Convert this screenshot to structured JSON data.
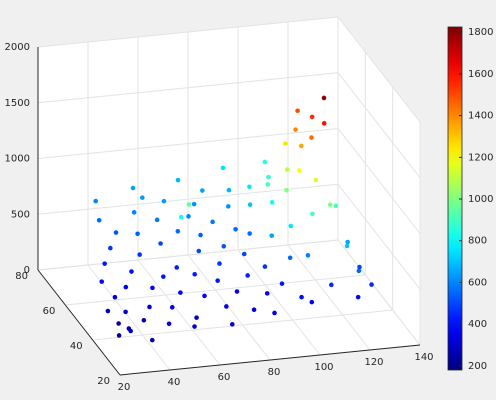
{
  "chart_data": {
    "type": "scatter3d",
    "colormap": "jet",
    "grid": true,
    "xlim": [
      20,
      140
    ],
    "xticks": [
      20,
      40,
      60,
      80,
      100,
      120,
      140
    ],
    "ylim": [
      20,
      80
    ],
    "yticks": [
      20,
      40,
      60,
      80
    ],
    "zlim": [
      0,
      2000
    ],
    "zticks": [
      0,
      500,
      1000,
      1500,
      2000
    ],
    "clim": [
      180,
      1825
    ],
    "cticks": [
      200,
      400,
      600,
      800,
      1000,
      1200,
      1400,
      1600,
      1800
    ],
    "x": [
      24,
      26,
      27,
      25,
      29,
      30,
      28,
      31,
      33,
      35,
      36,
      38,
      40,
      41,
      43,
      44,
      45,
      39,
      47,
      48,
      50,
      51,
      53,
      54,
      55,
      57,
      58,
      60,
      59,
      64,
      62,
      62,
      63,
      65,
      66,
      68,
      69,
      70,
      72,
      73,
      75,
      74,
      77,
      78,
      79,
      80,
      82,
      83,
      85,
      86,
      87,
      89,
      90,
      91,
      92,
      93,
      95,
      96,
      97,
      98,
      99,
      100,
      101,
      102,
      103,
      104,
      105,
      106,
      107,
      108,
      109,
      110,
      111,
      112,
      113,
      114,
      115,
      116,
      117,
      118,
      119,
      120,
      121,
      122,
      124,
      125,
      118,
      110,
      34,
      52,
      66,
      84,
      100,
      42,
      58,
      76,
      94,
      108
    ],
    "y": [
      28,
      32,
      25,
      38,
      30,
      42,
      48,
      36,
      55,
      30,
      45,
      60,
      35,
      50,
      65,
      28,
      42,
      70,
      55,
      33,
      62,
      45,
      70,
      38,
      28,
      58,
      48,
      66,
      75,
      50,
      52,
      35,
      44,
      60,
      72,
      30,
      52,
      40,
      65,
      58,
      35,
      46,
      70,
      28,
      52,
      62,
      40,
      75,
      48,
      33,
      58,
      67,
      42,
      55,
      72,
      35,
      62,
      48,
      28,
      68,
      40,
      55,
      60,
      45,
      50,
      65,
      38,
      55,
      48,
      60,
      42,
      52,
      58,
      45,
      50,
      62,
      40,
      55,
      48,
      50,
      35,
      45,
      30,
      40,
      35,
      28,
      25,
      30,
      22,
      24,
      22,
      24,
      26,
      78,
      80,
      80,
      80,
      75
    ],
    "z": [
      220,
      260,
      300,
      280,
      240,
      330,
      380,
      290,
      420,
      300,
      360,
      470,
      330,
      410,
      520,
      280,
      380,
      560,
      470,
      340,
      540,
      420,
      600,
      380,
      310,
      500,
      440,
      580,
      640,
      960,
      820,
      380,
      430,
      560,
      640,
      350,
      500,
      420,
      600,
      540,
      390,
      470,
      620,
      330,
      520,
      580,
      440,
      650,
      500,
      380,
      560,
      620,
      470,
      560,
      680,
      420,
      700,
      640,
      400,
      760,
      560,
      820,
      900,
      760,
      1000,
      880,
      600,
      1100,
      1200,
      1250,
      900,
      1350,
      1400,
      1150,
      1450,
      1500,
      1000,
      1550,
      1600,
      1794,
      700,
      900,
      550,
      650,
      500,
      450,
      400,
      450,
      250,
      300,
      320,
      350,
      380,
      600,
      650,
      680,
      750,
      850
    ]
  }
}
